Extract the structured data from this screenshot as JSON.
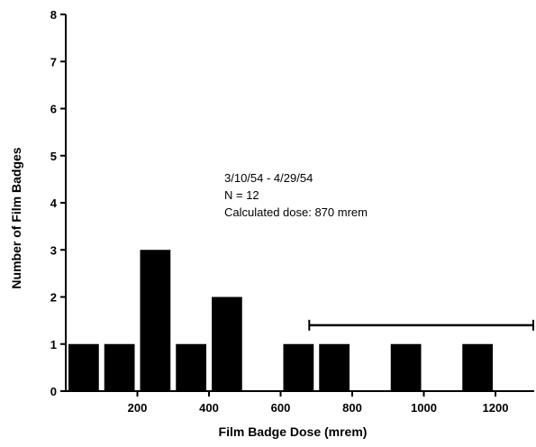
{
  "chart_data": {
    "type": "bar",
    "xlabel": "Film Badge Dose (mrem)",
    "ylabel": "Number of Film Badges",
    "ylim": [
      0,
      8
    ],
    "yticks": [
      "0",
      "1",
      "2",
      "3",
      "4",
      "5",
      "6",
      "7",
      "8"
    ],
    "xlim": [
      0,
      1300
    ],
    "xticks": [
      {
        "value": 200,
        "label": "200"
      },
      {
        "value": 400,
        "label": "400"
      },
      {
        "value": 600,
        "label": "600"
      },
      {
        "value": 800,
        "label": "800"
      },
      {
        "value": 1000,
        "label": "1000"
      },
      {
        "value": 1200,
        "label": "1200"
      }
    ],
    "bin_width": 100,
    "bars": [
      {
        "x": 50,
        "value": 1
      },
      {
        "x": 150,
        "value": 1
      },
      {
        "x": 250,
        "value": 3
      },
      {
        "x": 350,
        "value": 1
      },
      {
        "x": 450,
        "value": 2
      },
      {
        "x": 650,
        "value": 1
      },
      {
        "x": 750,
        "value": 1
      },
      {
        "x": 950,
        "value": 1
      },
      {
        "x": 1150,
        "value": 1
      }
    ],
    "range_bar": {
      "from": 680,
      "to": 1330,
      "y": 1.4
    },
    "annotations": [
      "3/10/54 - 4/29/54",
      "N = 12",
      "Calculated dose: 870 mrem"
    ],
    "grid": false
  }
}
